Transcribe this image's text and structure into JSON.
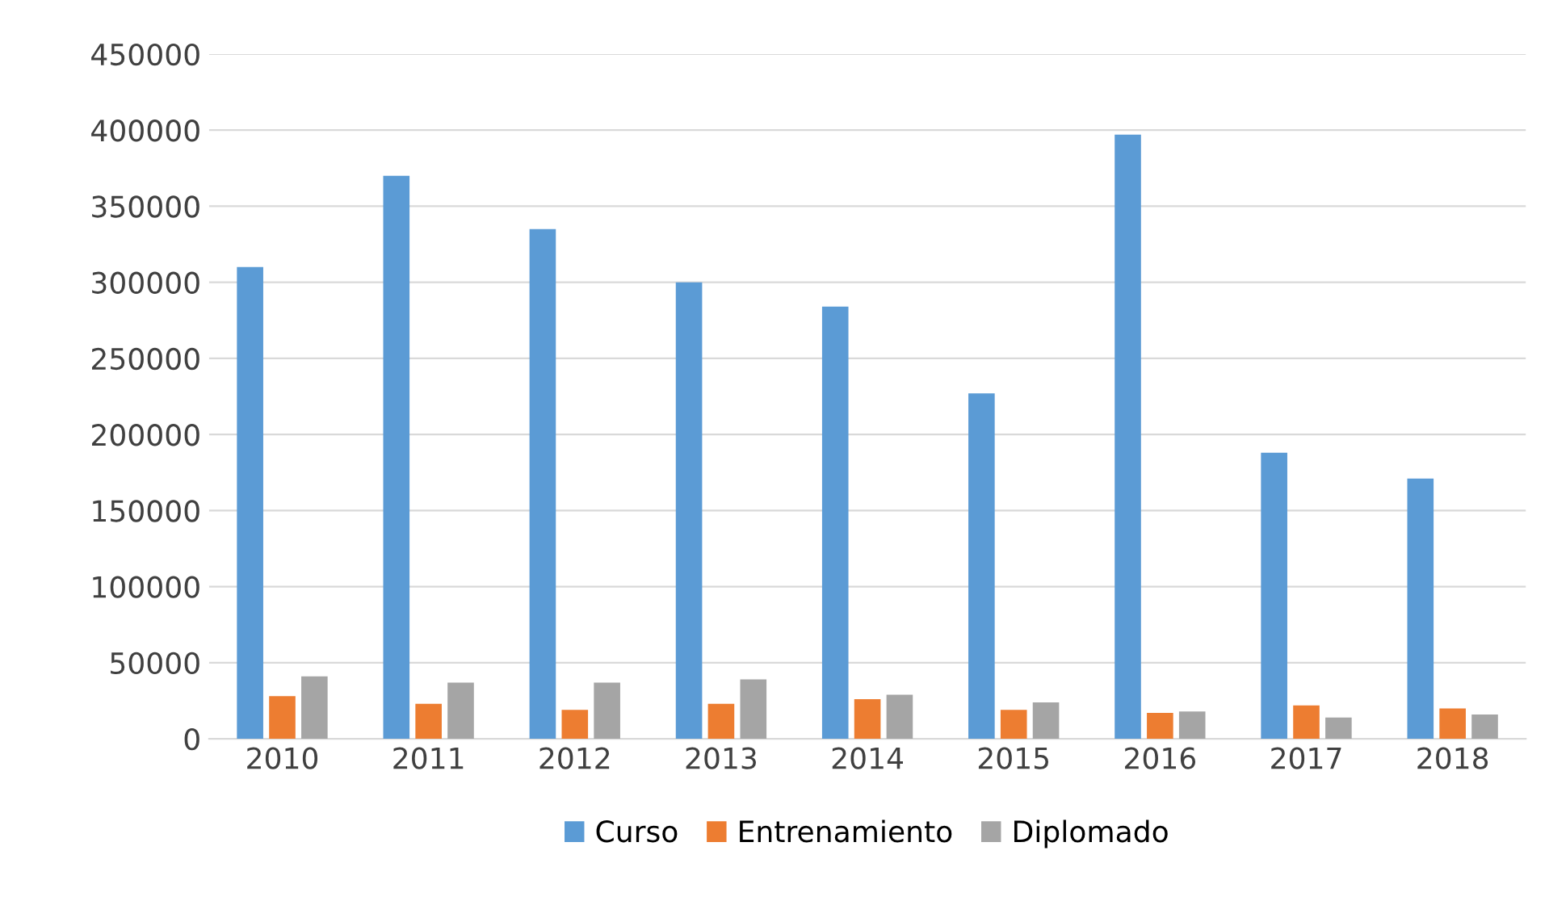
{
  "chart_data": {
    "type": "bar",
    "categories": [
      "2010",
      "2011",
      "2012",
      "2013",
      "2014",
      "2015",
      "2016",
      "2017",
      "2018"
    ],
    "series": [
      {
        "name": "Curso",
        "color": "#5b9bd5",
        "values": [
          310000,
          370000,
          335000,
          300000,
          284000,
          227000,
          397000,
          188000,
          171000
        ]
      },
      {
        "name": "Entrenamiento",
        "color": "#ed7d31",
        "values": [
          28000,
          23000,
          19000,
          23000,
          26000,
          19000,
          17000,
          22000,
          20000
        ]
      },
      {
        "name": "Diplomado",
        "color": "#a5a5a5",
        "values": [
          41000,
          37000,
          37000,
          39000,
          29000,
          24000,
          18000,
          14000,
          16000
        ]
      }
    ],
    "ylim": [
      0,
      450000
    ],
    "yticks": [
      0,
      50000,
      100000,
      150000,
      200000,
      250000,
      300000,
      350000,
      400000,
      450000
    ],
    "grid": "y",
    "legend": "bottom"
  }
}
